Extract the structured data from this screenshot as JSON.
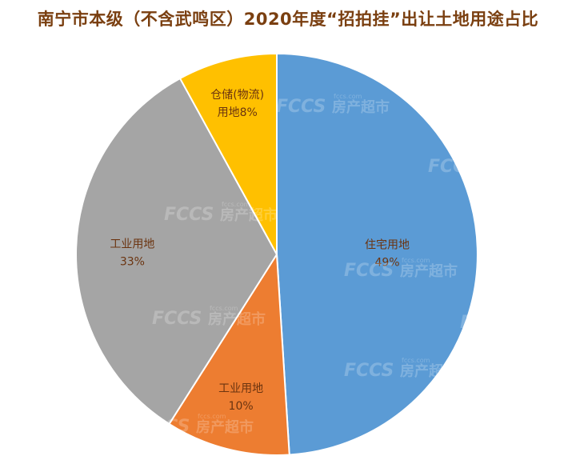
{
  "chart_data": {
    "type": "pie",
    "title": "南宁市本级（不含武鸣区）2020年度“招拍挂”出让土地用途占比",
    "slices": [
      {
        "name": "住宅用地",
        "value": 49,
        "label": "49%",
        "color": "#5b9bd5"
      },
      {
        "name": "工业用地",
        "value": 10,
        "label": "10%",
        "color": "#ed7d31"
      },
      {
        "name": "工业用地",
        "value": 33,
        "label": "33%",
        "color": "#a5a5a5"
      },
      {
        "name": "仓储(物流)用地",
        "value": 8,
        "label": "8%",
        "color": "#ffc000"
      }
    ],
    "label_lines": [
      [
        "住宅用地",
        "49%"
      ],
      [
        "工业用地",
        "10%"
      ],
      [
        "工业用地",
        "33%"
      ],
      [
        "仓储(物流)",
        "用地8%"
      ]
    ],
    "legend": "none"
  },
  "watermark": {
    "brand": "FCCS",
    "text": "房产超市",
    "domain": "fccs.com"
  }
}
